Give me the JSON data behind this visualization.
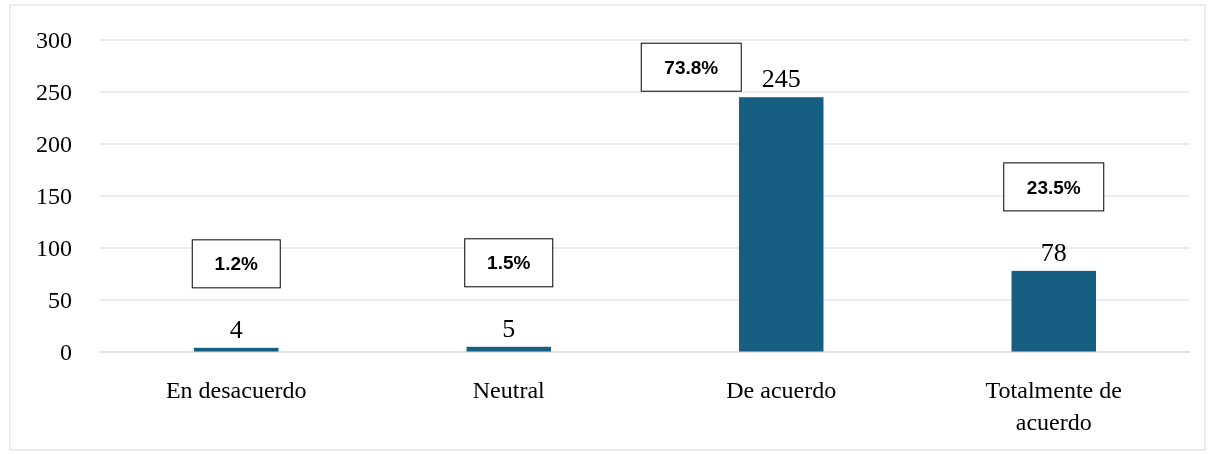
{
  "chart_data": {
    "type": "bar",
    "categories": [
      "En desacuerdo",
      "Neutral",
      "De acuerdo",
      "Totalmente de acuerdo"
    ],
    "values": [
      4,
      5,
      245,
      78
    ],
    "color": "#175f82",
    "ylim": [
      0,
      300
    ],
    "yticks": [
      0,
      50,
      100,
      150,
      200,
      250,
      300
    ],
    "grid": "y",
    "data_labels": true,
    "annotations": [
      "1.2%",
      "1.5%",
      "73.8%",
      "23.5%"
    ]
  }
}
